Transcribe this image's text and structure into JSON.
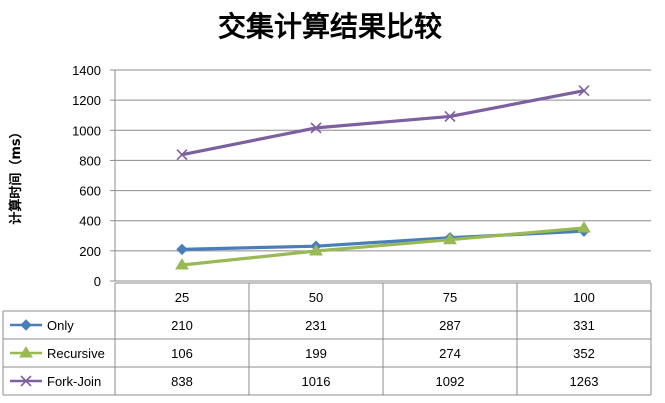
{
  "chart_data": {
    "type": "line",
    "title": "交集计算结果比较",
    "xlabel": "",
    "ylabel": "计算时间（ms）",
    "categories": [
      "25",
      "50",
      "75",
      "100"
    ],
    "ylim": [
      0,
      1400
    ],
    "yticks": [
      "0",
      "200",
      "400",
      "600",
      "800",
      "1000",
      "1200",
      "1400"
    ],
    "grid": true,
    "legend": "data-table",
    "series": [
      {
        "name": "Only",
        "values": [
          210,
          231,
          287,
          331
        ],
        "color": "#4a7ebb",
        "marker": "diamond"
      },
      {
        "name": "Recursive",
        "values": [
          106,
          199,
          274,
          352
        ],
        "color": "#98b954",
        "marker": "triangle"
      },
      {
        "name": "Fork-Join",
        "values": [
          838,
          1016,
          1092,
          1263
        ],
        "color": "#7d60a0",
        "marker": "x"
      }
    ]
  }
}
